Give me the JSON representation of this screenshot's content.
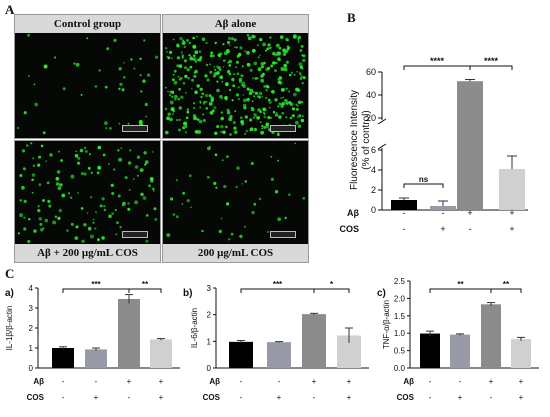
{
  "panel_letters": {
    "A": "A",
    "B": "B",
    "C": "C"
  },
  "panel_A": {
    "images": [
      {
        "label": "Control group",
        "density": "sparse"
      },
      {
        "label": "Aβ alone",
        "density": "dense"
      },
      {
        "label": "Aβ + 200 μg/mL COS",
        "density": "medium"
      },
      {
        "label": "200 μg/mL COS",
        "density": "sparse"
      }
    ],
    "colors": {
      "cell": "#2ee82e",
      "background": "#050805",
      "label_bg": "#d9d9d9"
    }
  },
  "chart_data": [
    {
      "type": "bar",
      "panel": "B",
      "ylabel": "Fluorescence Intensity\n(% of control)",
      "axis_break": {
        "lower": [
          0,
          6
        ],
        "upper": [
          20,
          60
        ]
      },
      "lower_ticks": [
        "0",
        "2",
        "4",
        "6"
      ],
      "upper_ticks": [
        "20",
        "40",
        "60"
      ],
      "values": [
        1.0,
        0.4,
        52,
        4.1
      ],
      "errors": [
        0.2,
        0.5,
        1.5,
        1.3
      ],
      "colors": [
        "#000000",
        "#999aa8",
        "#8c8c8c",
        "#d0d0d0"
      ],
      "row_labels": [
        "Aβ",
        "COS"
      ],
      "rows": [
        [
          "-",
          "-",
          "+",
          "+"
        ],
        [
          "-",
          "+",
          "-",
          "+"
        ]
      ],
      "annotations": [
        {
          "from": 0,
          "to": 2,
          "text": "****"
        },
        {
          "from": 2,
          "to": 3,
          "text": "****"
        },
        {
          "from": 0,
          "to": 1,
          "text": "ns"
        }
      ]
    },
    {
      "type": "bar",
      "panel": "a)",
      "ylabel": "IL-1β/β-actin",
      "ylim": [
        0,
        4
      ],
      "ticks": [
        "0",
        "1",
        "2",
        "3",
        "4"
      ],
      "values": [
        1.0,
        0.93,
        3.45,
        1.43
      ],
      "errors": [
        0.06,
        0.07,
        0.22,
        0.04
      ],
      "colors": [
        "#000000",
        "#999aa8",
        "#8c8c8c",
        "#d0d0d0"
      ],
      "row_labels": [
        "Aβ",
        "COS"
      ],
      "rows": [
        [
          "-",
          "-",
          "+",
          "+"
        ],
        [
          "-",
          "+",
          "-",
          "+"
        ]
      ],
      "annotations": [
        {
          "from": 0,
          "to": 2,
          "text": "***"
        },
        {
          "from": 2,
          "to": 3,
          "text": "**"
        }
      ]
    },
    {
      "type": "bar",
      "panel": "b)",
      "ylabel": "IL-6/β-actin",
      "ylim": [
        0,
        3
      ],
      "ticks": [
        "0",
        "1",
        "2",
        "3"
      ],
      "values": [
        0.98,
        0.97,
        2.02,
        1.22
      ],
      "errors": [
        0.05,
        0.02,
        0.03,
        0.28
      ],
      "colors": [
        "#000000",
        "#999aa8",
        "#8c8c8c",
        "#d0d0d0"
      ],
      "row_labels": [
        "Aβ",
        "COS"
      ],
      "rows": [
        [
          "-",
          "-",
          "+",
          "+"
        ],
        [
          "-",
          "+",
          "-",
          "+"
        ]
      ],
      "annotations": [
        {
          "from": 0,
          "to": 2,
          "text": "***"
        },
        {
          "from": 2,
          "to": 3,
          "text": "*"
        }
      ]
    },
    {
      "type": "bar",
      "panel": "c)",
      "ylabel": "TNF-α/β-actin",
      "ylim": [
        0.0,
        2.5
      ],
      "ticks": [
        "0.0",
        "0.5",
        "1.0",
        "1.5",
        "2.0",
        "2.5"
      ],
      "values": [
        0.99,
        0.96,
        1.83,
        0.83
      ],
      "errors": [
        0.07,
        0.02,
        0.05,
        0.05
      ],
      "colors": [
        "#000000",
        "#999aa8",
        "#8c8c8c",
        "#d0d0d0"
      ],
      "row_labels": [
        "Aβ",
        "COS"
      ],
      "rows": [
        [
          "-",
          "-",
          "+",
          "+"
        ],
        [
          "-",
          "+",
          "-",
          "+"
        ]
      ],
      "annotations": [
        {
          "from": 0,
          "to": 2,
          "text": "**"
        },
        {
          "from": 2,
          "to": 3,
          "text": "**"
        }
      ]
    }
  ]
}
